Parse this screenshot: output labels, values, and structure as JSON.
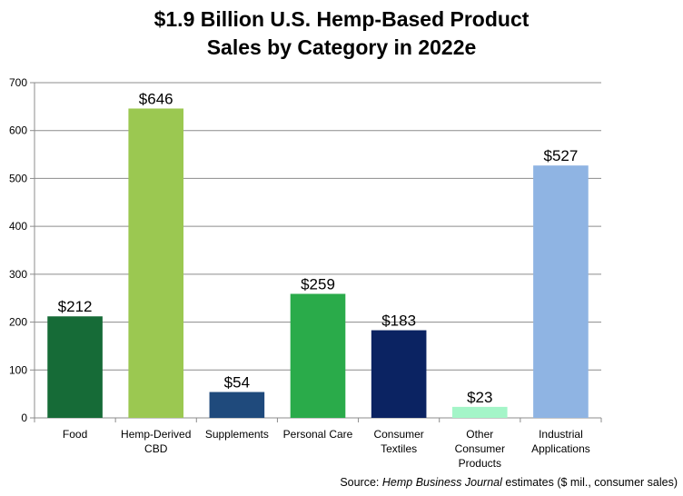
{
  "chart_data": {
    "type": "bar",
    "title_lines": [
      "$1.9 Billion U.S. Hemp-Based Product",
      "Sales by Category in 2022e"
    ],
    "categories": [
      [
        "Food"
      ],
      [
        "Hemp-Derived",
        "CBD"
      ],
      [
        "Supplements"
      ],
      [
        "Personal Care"
      ],
      [
        "Consumer",
        "Textiles"
      ],
      [
        "Other",
        "Consumer",
        "Products"
      ],
      [
        "Industrial",
        "Applications"
      ]
    ],
    "values": [
      212,
      646,
      54,
      259,
      183,
      23,
      527
    ],
    "data_labels": [
      "$212",
      "$646",
      "$54",
      "$259",
      "$183",
      "$23",
      "$527"
    ],
    "colors": [
      "#166b37",
      "#9bc851",
      "#1f4a7c",
      "#2aab4a",
      "#0b2362",
      "#a4f5c8",
      "#8fb4e3"
    ],
    "ylim": [
      0,
      700
    ],
    "yticks": [
      0,
      100,
      200,
      300,
      400,
      500,
      600,
      700
    ],
    "grid": true,
    "legend": "none"
  },
  "source": {
    "prefix": "Source: ",
    "italic": "Hemp Business Journal",
    "suffix": " estimates ($ mil., consumer sales)"
  }
}
